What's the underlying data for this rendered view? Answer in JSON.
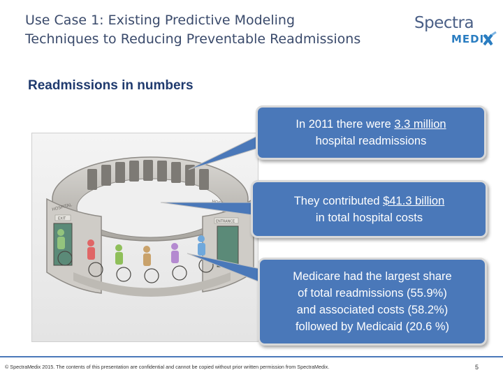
{
  "header": {
    "title_line1": "Use Case 1: Existing Predictive Modeling",
    "title_line2": "Techniques to Reducing Preventable Readmissions",
    "logo_top": "Spectra",
    "logo_bottom": "MEDIX"
  },
  "subtitle": "Readmissions in numbers",
  "illustration": {
    "sign_hospital_left": "HOSPITAL",
    "sign_hospital_right": "HOSPITAL",
    "sign_exit": "EXIT",
    "sign_entrance": "ENTRANCE"
  },
  "callouts": [
    {
      "pre": "In 2011 there were ",
      "highlight": "3.3 million",
      "post": "hospital readmissions"
    },
    {
      "pre": "They contributed ",
      "highlight": "$41.3 billion",
      "post": "in total hospital costs"
    },
    {
      "lines": [
        "Medicare had the largest share",
        "of total readmissions (55.9%)",
        "and associated costs (58.2%)",
        "followed  by Medicaid (20.6 %)"
      ]
    }
  ],
  "footer": {
    "text": "© SpectraMedix 2015. The contents of this presentation are confidential and cannot be copied without prior written permission from SpectraMedix.",
    "page": "5"
  },
  "colors": {
    "callout_bg": "#4a78b9",
    "title": "#3a4a6b",
    "subtitle": "#1f3a6e",
    "logo_medix": "#2a7dc1"
  }
}
